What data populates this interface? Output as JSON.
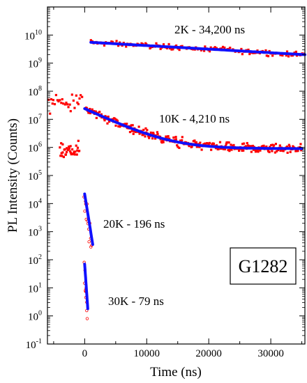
{
  "chart_data": {
    "type": "scatter",
    "title": "",
    "xlabel": "Time (ns)",
    "ylabel": "PL Intensity  (Counts)",
    "xlim": [
      -6000,
      35500
    ],
    "ylim_log10": [
      -1,
      11
    ],
    "yscale": "log",
    "x_ticks": [
      0,
      10000,
      20000,
      30000
    ],
    "x_tick_labels": [
      "0",
      "10000",
      "20000",
      "30000"
    ],
    "y_ticks": [
      {
        "base": "10",
        "exp": "-1"
      },
      {
        "base": "10",
        "exp": "0"
      },
      {
        "base": "10",
        "exp": "1"
      },
      {
        "base": "10",
        "exp": "2"
      },
      {
        "base": "10",
        "exp": "3"
      },
      {
        "base": "10",
        "exp": "4"
      },
      {
        "base": "10",
        "exp": "5"
      },
      {
        "base": "10",
        "exp": "6"
      },
      {
        "base": "10",
        "exp": "7"
      },
      {
        "base": "10",
        "exp": "8"
      },
      {
        "base": "10",
        "exp": "9"
      },
      {
        "base": "10",
        "exp": "10"
      }
    ],
    "grid": false,
    "data_color": "#ff0000",
    "fit_color": "#1010ff",
    "series": [
      {
        "temperature": "2K",
        "lifetime_ns": 34200,
        "annotation": "2K - 34,200 ns",
        "fit": {
          "x_start": 1000,
          "x_end": 35500,
          "y_start": 5500000000.0,
          "y_end": 2000000000.0
        }
      },
      {
        "temperature": "10K",
        "lifetime_ns": 4210,
        "annotation": "10K -  4,210 ns",
        "fit": {
          "x_start": 0,
          "x_end": 35000,
          "y_start": 24000000.0,
          "y_end": 900000.0,
          "floor": 900000.0,
          "fast_tau": 4210
        },
        "pre_trigger": [
          {
            "x_range": [
              -5800,
              -400
            ],
            "y": 40000000.0
          },
          {
            "x_range": [
              -4000,
              -800
            ],
            "y": 800000.0
          }
        ]
      },
      {
        "temperature": "20K",
        "lifetime_ns": 196,
        "annotation": "20K - 196 ns",
        "fit": {
          "x_start": 0,
          "x_end": 1300,
          "y_start": 22000.0,
          "y_end": 350
        }
      },
      {
        "temperature": "30K",
        "lifetime_ns": 79,
        "annotation": "30K - 79 ns",
        "fit": {
          "x_start": 0,
          "x_end": 500,
          "y_start": 70,
          "y_end": 1.8
        }
      }
    ],
    "sample_label": "G1282"
  }
}
